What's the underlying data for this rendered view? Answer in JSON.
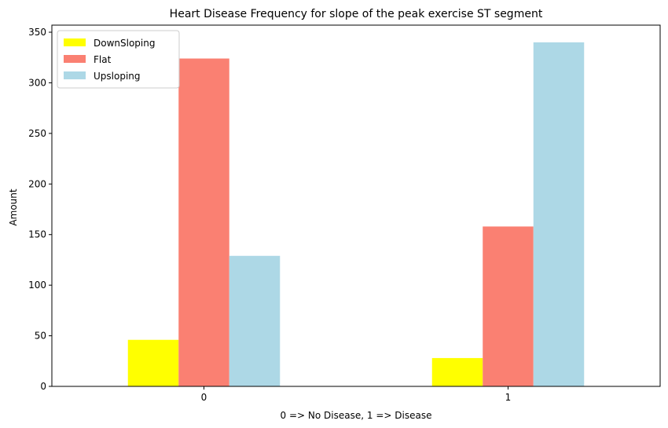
{
  "chart_data": {
    "type": "bar",
    "title": "Heart Disease Frequency for slope of the peak exercise ST segment",
    "xlabel": "0 => No Disease, 1 => Disease",
    "ylabel": "Amount",
    "categories": [
      "0",
      "1"
    ],
    "ylim": [
      0,
      357
    ],
    "yticks": [
      0,
      50,
      100,
      150,
      200,
      250,
      300,
      350
    ],
    "legend_position": "top-left",
    "grid": false,
    "series": [
      {
        "name": "DownSloping",
        "color": "#ffff00",
        "values": [
          46,
          28
        ]
      },
      {
        "name": "Flat",
        "color": "#fa8072",
        "values": [
          324,
          158
        ]
      },
      {
        "name": "Upsloping",
        "color": "#add8e6",
        "values": [
          129,
          340
        ]
      }
    ]
  }
}
